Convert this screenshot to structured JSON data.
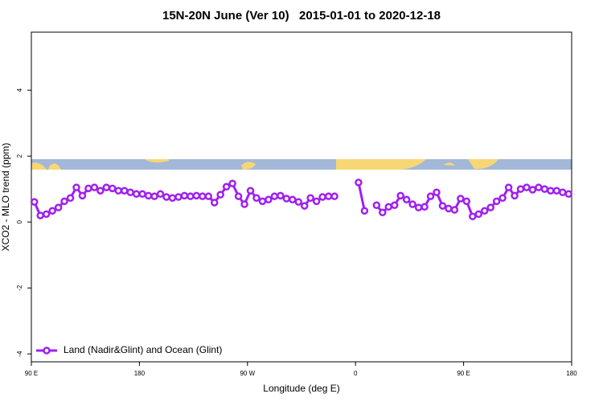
{
  "chart_data": {
    "type": "line",
    "title": "15N-20N June (Ver 10)   2015-01-01 to 2020-12-18",
    "xlabel": "Longitude (deg E)",
    "ylabel": "XCO2 - MLO trend (ppm)",
    "x": [
      92.5,
      97.5,
      102.5,
      107.5,
      112.5,
      117.5,
      122.5,
      127.5,
      132.5,
      137.5,
      142.5,
      147.5,
      152.5,
      157.5,
      162.5,
      167.5,
      172.5,
      177.5,
      182.5,
      187.5,
      192.5,
      197.5,
      202.5,
      207.5,
      212.5,
      217.5,
      222.5,
      227.5,
      232.5,
      237.5,
      242.5,
      247.5,
      252.5,
      257.5,
      262.5,
      267.5,
      272.5,
      277.5,
      282.5,
      287.5,
      292.5,
      297.5,
      302.5,
      307.5,
      312.5,
      317.5,
      322.5,
      327.5,
      332.5,
      337.5,
      342.5,
      347.5,
      352.5,
      357.5,
      362.5,
      367.5,
      372.5,
      377.5,
      382.5,
      387.5,
      392.5,
      397.5,
      402.5,
      407.5,
      412.5,
      417.5,
      422.5,
      427.5,
      432.5,
      437.5,
      442.5,
      447.5,
      452.5,
      457.5,
      462.5,
      467.5,
      472.5,
      477.5,
      482.5,
      487.5,
      492.5,
      497.5,
      502.5,
      507.5,
      512.5,
      517.5,
      522.5,
      527.5,
      532.5,
      537.5
    ],
    "series": [
      {
        "name": "Land (Nadir&Glint) and Ocean (Glint)",
        "color": "#a020f0",
        "values": [
          0.61,
          0.2,
          0.24,
          0.34,
          0.44,
          0.63,
          0.73,
          1.05,
          0.8,
          1.02,
          1.05,
          0.95,
          1.05,
          1.02,
          0.95,
          0.95,
          0.9,
          0.85,
          0.85,
          0.8,
          0.78,
          0.85,
          0.76,
          0.73,
          0.76,
          0.8,
          0.78,
          0.8,
          0.78,
          0.78,
          0.59,
          0.83,
          1.07,
          1.17,
          0.78,
          0.54,
          0.95,
          0.73,
          0.63,
          0.68,
          0.78,
          0.8,
          0.71,
          0.68,
          0.61,
          0.49,
          0.73,
          0.63,
          0.76,
          0.78,
          0.78,
          null,
          null,
          null,
          1.2,
          0.34,
          null,
          0.51,
          0.29,
          0.46,
          0.51,
          0.8,
          0.68,
          0.54,
          0.44,
          0.46,
          0.78,
          0.9,
          0.49,
          0.41,
          0.37,
          0.71,
          0.63,
          0.17,
          0.24,
          0.34,
          0.44,
          0.63,
          0.73,
          1.05,
          0.8,
          1.0,
          1.05,
          0.98,
          1.05,
          1.0,
          0.95,
          0.95,
          0.9,
          0.85
        ]
      }
    ],
    "xlim": [
      90,
      540
    ],
    "xticks": [
      {
        "value": 90,
        "label": "90 E"
      },
      180,
      {
        "value": 270,
        "label": "90 W"
      },
      {
        "value": 360,
        "label": "0"
      },
      {
        "value": 450,
        "label": "90 E"
      },
      {
        "value": 540,
        "label": "180"
      }
    ],
    "ylim": [
      -4.24,
      5.76
    ],
    "yticks": [
      -4,
      -2,
      0,
      2,
      4
    ],
    "legend": "bottom-left"
  }
}
